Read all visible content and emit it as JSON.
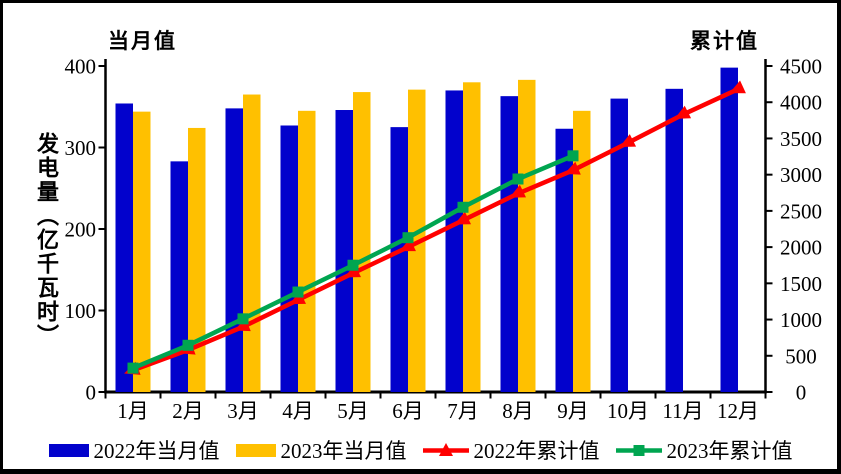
{
  "chart_data": {
    "type": "bar",
    "subtype": "combo bar + cumulative lines, dual axis",
    "title": "",
    "categories": [
      "1月",
      "2月",
      "3月",
      "4月",
      "5月",
      "6月",
      "7月",
      "8月",
      "9月",
      "10月",
      "11月",
      "12月"
    ],
    "left_axis": {
      "title": "当月值",
      "label": "发电量（亿千瓦时）",
      "min": 0,
      "max": 400,
      "step": 100,
      "ticks": [
        "400",
        "300",
        "200",
        "100",
        "0"
      ]
    },
    "right_axis": {
      "title": "累计值",
      "min": 0,
      "max": 4500,
      "step": 500,
      "ticks": [
        "4500",
        "4000",
        "3500",
        "3000",
        "2500",
        "2000",
        "1500",
        "1000",
        "500",
        "0"
      ]
    },
    "grid": "off",
    "legend_position": "bottom",
    "series": [
      {
        "name": "2022年当月值",
        "series_type": "bar",
        "axis": "left",
        "color": "#0202CC",
        "values": [
          354,
          283,
          348,
          327,
          346,
          325,
          370,
          363,
          323,
          360,
          372,
          398
        ]
      },
      {
        "name": "2023年当月值",
        "series_type": "bar",
        "axis": "left",
        "color": "#FFC000",
        "values": [
          344,
          324,
          365,
          345,
          368,
          371,
          380,
          383,
          345,
          null,
          null,
          null
        ]
      },
      {
        "name": "2022年累计值",
        "series_type": "line",
        "marker": "triangle",
        "axis": "right",
        "color": "#FF0000",
        "values": [
          300,
          580,
          900,
          1270,
          1640,
          2000,
          2370,
          2740,
          3060,
          3440,
          3830,
          4180
        ]
      },
      {
        "name": "2023年累计值",
        "series_type": "line",
        "marker": "square",
        "axis": "right",
        "color": "#00A550",
        "values": [
          330,
          645,
          1010,
          1380,
          1750,
          2130,
          2550,
          2940,
          3260,
          null,
          null,
          null
        ]
      }
    ]
  }
}
